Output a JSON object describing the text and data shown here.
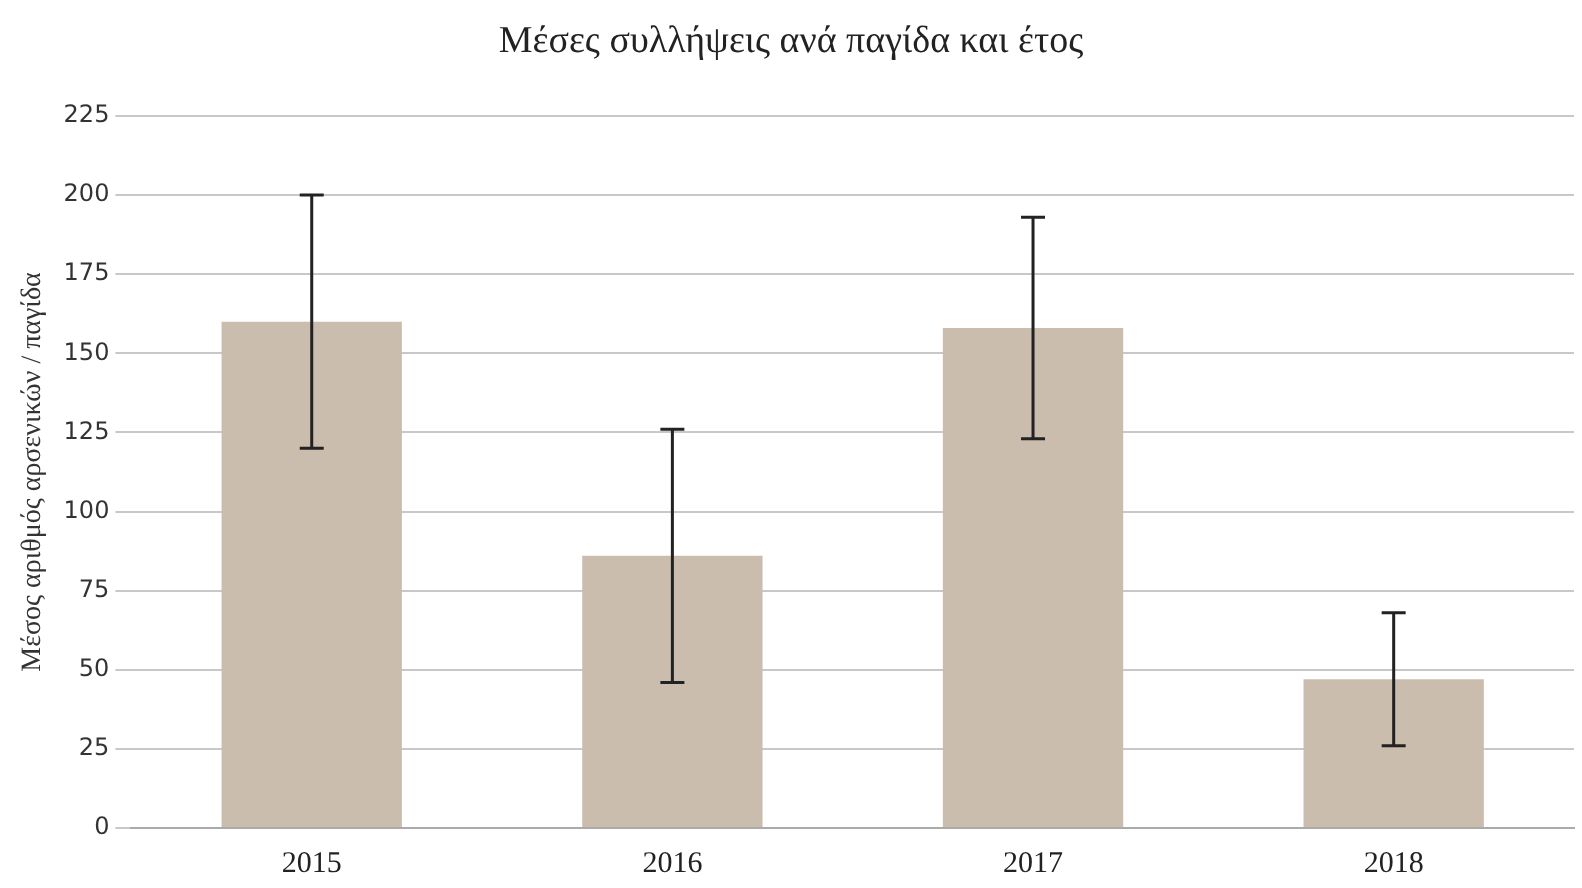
{
  "chart_data": {
    "type": "bar",
    "title": "Μέσες συλλήψεις ανά παγίδα και έτος",
    "ylabel": "Μέσος αριθμός αρσενικών / παγίδα",
    "categories": [
      "2015",
      "2016",
      "2017",
      "2018"
    ],
    "values": [
      160,
      86,
      158,
      47
    ],
    "errors": [
      40,
      40,
      35,
      21
    ],
    "color": "#cbbdad",
    "ylim": [
      0,
      225
    ],
    "yticks": [
      0,
      25,
      50,
      75,
      100,
      125,
      150,
      175,
      200,
      225
    ],
    "grid": "y"
  }
}
